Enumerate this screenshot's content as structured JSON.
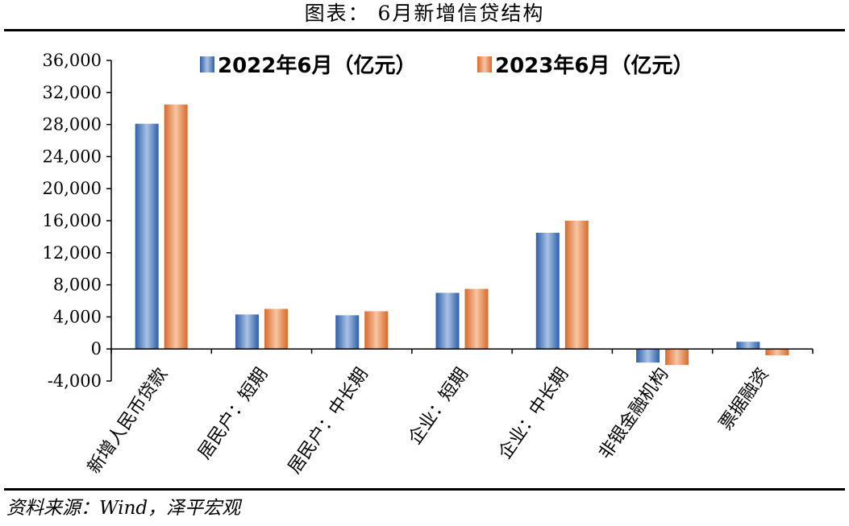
{
  "title": "图表： 6月新增信贷结构",
  "source": "资料来源：Wind，泽平宏观",
  "chart_data": {
    "type": "bar",
    "categories": [
      "新增人民币贷款",
      "居民户：短期",
      "居民户：中长期",
      "企业：短期",
      "企业：中长期",
      "非银金融机构",
      "票据融资"
    ],
    "series": [
      {
        "name": "2022年6月（亿元）",
        "values": [
          28100,
          4300,
          4200,
          7000,
          14500,
          -1700,
          900
        ],
        "color": "#4a7bc0"
      },
      {
        "name": "2023年6月（亿元）",
        "values": [
          30500,
          5000,
          4700,
          7500,
          16000,
          -2000,
          -800
        ],
        "color": "#e0854b"
      }
    ],
    "ylim": [
      -4000,
      36000
    ],
    "yticks": [
      "-4,000",
      "0",
      "4,000",
      "8,000",
      "12,000",
      "16,000",
      "20,000",
      "24,000",
      "28,000",
      "32,000",
      "36,000"
    ],
    "legend_position": "top",
    "grid": false
  }
}
